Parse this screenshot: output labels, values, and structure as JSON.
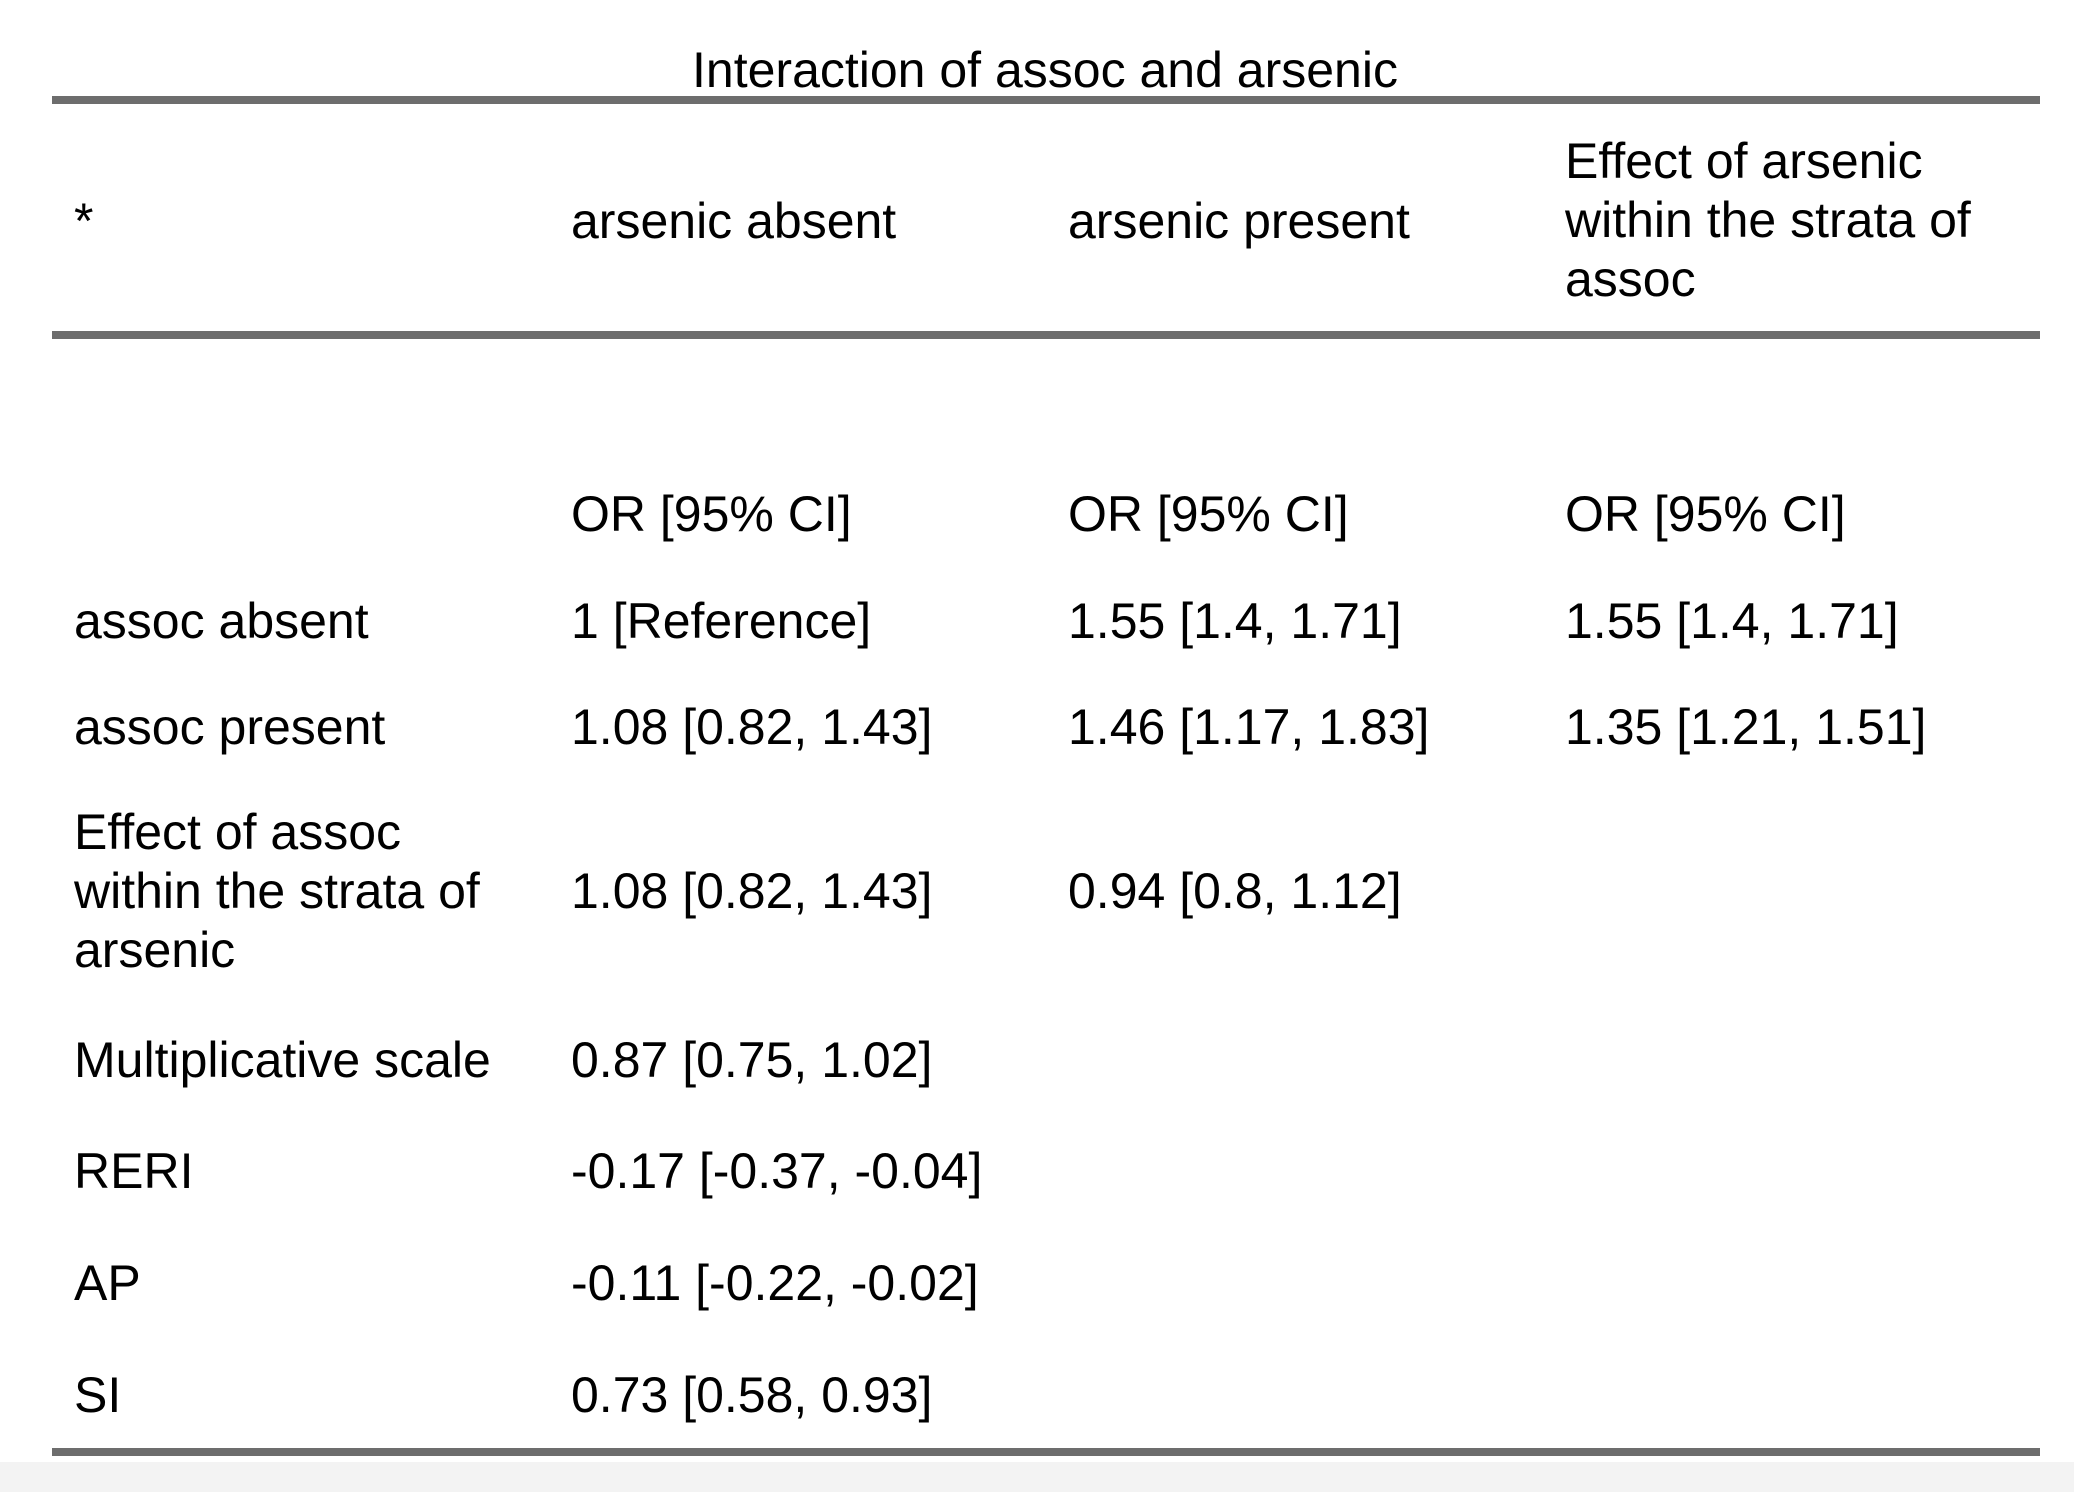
{
  "title": "Interaction of assoc and arsenic",
  "header": [
    "*",
    "arsenic absent",
    "arsenic present",
    "Effect of arsenic within the strata of assoc"
  ],
  "header_lines": {
    "col3": [
      "Effect of arsenic",
      "within the strata of",
      "assoc"
    ]
  },
  "subheader": [
    "",
    "OR [95% CI]",
    "OR [95% CI]",
    "OR [95% CI]"
  ],
  "rows": [
    {
      "label": "assoc absent",
      "absent": "1 [Reference]",
      "present": "1.55 [1.4, 1.71]",
      "effect": "1.55 [1.4, 1.71]"
    },
    {
      "label": "assoc present",
      "absent": "1.08 [0.82, 1.43]",
      "present": "1.46 [1.17, 1.83]",
      "effect": "1.35 [1.21, 1.51]"
    },
    {
      "label_lines": [
        "Effect of assoc",
        "within the strata of",
        "arsenic"
      ],
      "absent": "1.08 [0.82, 1.43]",
      "present": "0.94 [0.8, 1.12]",
      "effect": ""
    },
    {
      "label": "Multiplicative scale",
      "absent": "0.87 [0.75, 1.02]",
      "present": "",
      "effect": ""
    },
    {
      "label": "RERI",
      "absent": "-0.17 [-0.37, -0.04]",
      "present": "",
      "effect": ""
    },
    {
      "label": "AP",
      "absent": "-0.11 [-0.22, -0.02]",
      "present": "",
      "effect": ""
    },
    {
      "label": "SI",
      "absent": "0.73 [0.58, 0.93]",
      "present": "",
      "effect": ""
    }
  ]
}
